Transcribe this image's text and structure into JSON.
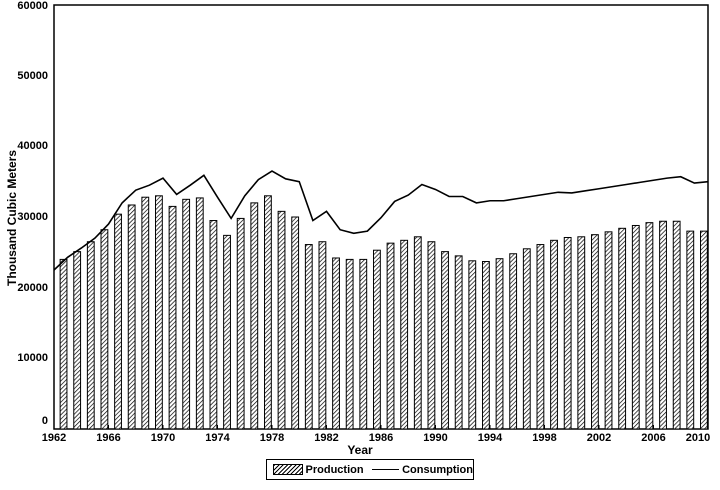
{
  "chart_data": {
    "type": "bar",
    "title": "",
    "xlabel": "Year",
    "ylabel": "Thousand Cubic Meters",
    "ylim": [
      0,
      60000
    ],
    "xlim": [
      1962,
      2010
    ],
    "grid": false,
    "legend_position": "bottom",
    "y_ticks": [
      "60000",
      "50000",
      "40000",
      "30000",
      "20000",
      "10000",
      "0"
    ],
    "x_ticks": [
      "1962",
      "1966",
      "1970",
      "1974",
      "1978",
      "1982",
      "1986",
      "1990",
      "1994",
      "1998",
      "2002",
      "2006",
      "2010"
    ],
    "categories": [
      1963,
      1964,
      1965,
      1966,
      1967,
      1968,
      1969,
      1970,
      1971,
      1972,
      1973,
      1974,
      1975,
      1976,
      1977,
      1978,
      1979,
      1980,
      1981,
      1982,
      1983,
      1984,
      1985,
      1986,
      1987,
      1988,
      1989,
      1990,
      1991,
      1992,
      1993,
      1994,
      1995,
      1996,
      1997,
      1998,
      1999,
      2000,
      2001,
      2002,
      2003,
      2004,
      2005,
      2006,
      2007,
      2008,
      2009,
      2010
    ],
    "series": [
      {
        "name": "Production",
        "kind": "bar",
        "values": [
          24000,
          25100,
          26500,
          28200,
          30400,
          31700,
          32800,
          33000,
          31500,
          32500,
          32700,
          29500,
          27400,
          29800,
          32000,
          33000,
          30800,
          30000,
          26100,
          26500,
          24200,
          24000,
          24000,
          25300,
          26300,
          26700,
          27200,
          26500,
          25100,
          24500,
          23800,
          23700,
          24100,
          24800,
          25500,
          26100,
          26700,
          27100,
          27200,
          27500,
          27900,
          28400,
          28800,
          29200,
          29400,
          29400,
          28000,
          28000
        ]
      },
      {
        "name": "Consumption",
        "kind": "line",
        "x": [
          1962,
          1963,
          1964,
          1965,
          1966,
          1967,
          1968,
          1969,
          1970,
          1971,
          1972,
          1973,
          1974,
          1975,
          1976,
          1977,
          1978,
          1979,
          1980,
          1981,
          1982,
          1983,
          1984,
          1985,
          1986,
          1987,
          1988,
          1989,
          1990,
          1991,
          1992,
          1993,
          1994,
          1995,
          1996,
          1997,
          1998,
          1999,
          2000,
          2001,
          2002,
          2003,
          2004,
          2005,
          2006,
          2007,
          2008,
          2009,
          2010
        ],
        "values": [
          22500,
          24300,
          25600,
          27000,
          29000,
          32000,
          33800,
          34500,
          35500,
          33200,
          34500,
          35900,
          32800,
          29800,
          33000,
          35300,
          36500,
          35400,
          35000,
          29500,
          30800,
          28200,
          27700,
          28000,
          29900,
          32200,
          33100,
          34600,
          33900,
          32900,
          32900,
          32000,
          32300,
          32300,
          32600,
          32900,
          33200,
          33500,
          33400,
          33700,
          34000,
          34300,
          34600,
          34900,
          35200,
          35500,
          35700,
          34800,
          35000
        ]
      }
    ]
  }
}
